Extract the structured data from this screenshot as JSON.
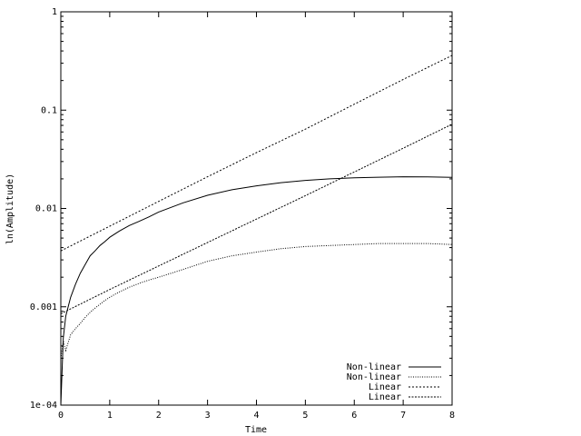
{
  "chart_data": {
    "type": "line",
    "title": "",
    "xlabel": "Time",
    "ylabel": "ln(Amplitude)",
    "xlim": [
      0,
      8
    ],
    "ylim": [
      0.0001,
      1
    ],
    "yscale": "log",
    "grid": false,
    "legend_position": "bottom-right",
    "x_ticks": [
      {
        "value": 0,
        "label": "0"
      },
      {
        "value": 1,
        "label": "1"
      },
      {
        "value": 2,
        "label": "2"
      },
      {
        "value": 3,
        "label": "3"
      },
      {
        "value": 4,
        "label": "4"
      },
      {
        "value": 5,
        "label": "5"
      },
      {
        "value": 6,
        "label": "6"
      },
      {
        "value": 7,
        "label": "7"
      },
      {
        "value": 8,
        "label": "8"
      }
    ],
    "y_ticks": [
      {
        "value": 0.0001,
        "label": "1e-04"
      },
      {
        "value": 0.001,
        "label": "0.001"
      },
      {
        "value": 0.01,
        "label": "0.01"
      },
      {
        "value": 0.1,
        "label": "0.1"
      },
      {
        "value": 1,
        "label": "1"
      }
    ],
    "series": [
      {
        "name": "Non-linear",
        "style": "solid",
        "x": [
          0,
          0.05,
          0.1,
          0.2,
          0.3,
          0.4,
          0.5,
          0.6,
          0.7,
          0.8,
          0.9,
          1.0,
          1.2,
          1.4,
          1.6,
          1.8,
          2.0,
          2.5,
          3.0,
          3.5,
          4.0,
          4.5,
          5.0,
          5.5,
          6.0,
          6.5,
          7.0,
          7.5,
          8.0
        ],
        "y": [
          0.0001,
          0.00048,
          0.0008,
          0.00125,
          0.0017,
          0.0022,
          0.0027,
          0.0033,
          0.0037,
          0.0042,
          0.0046,
          0.0051,
          0.0059,
          0.0067,
          0.0074,
          0.0082,
          0.0092,
          0.0114,
          0.0136,
          0.0155,
          0.017,
          0.0183,
          0.0193,
          0.02,
          0.0205,
          0.0208,
          0.021,
          0.0209,
          0.0207
        ]
      },
      {
        "name": "Non-linear",
        "style": "dotted",
        "x": [
          0,
          0.05,
          0.1,
          0.2,
          0.3,
          0.4,
          0.5,
          0.6,
          0.7,
          0.8,
          0.9,
          1.0,
          1.2,
          1.4,
          1.6,
          1.8,
          2.0,
          2.5,
          3.0,
          3.5,
          4.0,
          4.5,
          5.0,
          5.5,
          6.0,
          6.5,
          7.0,
          7.5,
          8.0
        ],
        "y": [
          0.0003,
          0.00045,
          0.00036,
          0.00052,
          0.0006,
          0.00068,
          0.00078,
          0.00088,
          0.00097,
          0.00106,
          0.00116,
          0.00125,
          0.00142,
          0.00158,
          0.00173,
          0.00187,
          0.002,
          0.0024,
          0.0029,
          0.0033,
          0.0036,
          0.0039,
          0.0041,
          0.0042,
          0.0043,
          0.0044,
          0.0044,
          0.0044,
          0.0043
        ]
      },
      {
        "name": "Linear",
        "style": "dashed",
        "x": [
          0,
          1,
          2,
          3,
          4,
          5,
          6,
          7,
          8
        ],
        "y": [
          0.0037,
          0.0066,
          0.0118,
          0.021,
          0.037,
          0.064,
          0.115,
          0.205,
          0.36
        ]
      },
      {
        "name": "Linear",
        "style": "dashed-fine",
        "x": [
          0,
          1,
          2,
          3,
          4,
          5,
          6,
          7,
          8
        ],
        "y": [
          0.00085,
          0.0015,
          0.0026,
          0.0045,
          0.0078,
          0.0135,
          0.0235,
          0.041,
          0.072
        ]
      }
    ]
  }
}
